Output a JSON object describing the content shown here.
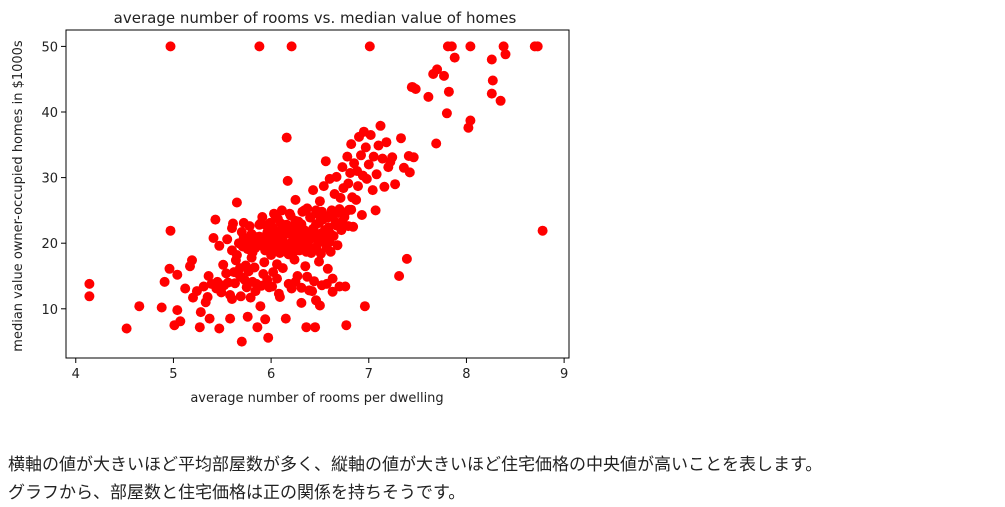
{
  "chart_data": {
    "type": "scatter",
    "title": "average number of rooms vs. median value of homes",
    "xlabel": "average number of rooms per dwelling",
    "ylabel": "median value owner-occupied homes in $1000s",
    "xlim": [
      3.9,
      9.05
    ],
    "ylim": [
      2.5,
      52.5
    ],
    "xticks": [
      4,
      5,
      6,
      7,
      8,
      9
    ],
    "yticks": [
      10,
      20,
      30,
      40,
      50
    ],
    "grid": false,
    "legend": "none",
    "color": "#ff0000",
    "points": [
      [
        4.97,
        50
      ],
      [
        5.88,
        50
      ],
      [
        6.21,
        50
      ],
      [
        7.01,
        50
      ],
      [
        7.81,
        50
      ],
      [
        7.85,
        50
      ],
      [
        8.04,
        50
      ],
      [
        8.38,
        50
      ],
      [
        8.7,
        50
      ],
      [
        8.73,
        50
      ],
      [
        7.77,
        45.5
      ],
      [
        7.88,
        48.3
      ],
      [
        8.26,
        48.0
      ],
      [
        8.27,
        44.8
      ],
      [
        8.4,
        48.8
      ],
      [
        7.7,
        46.5
      ],
      [
        7.66,
        45.8
      ],
      [
        7.45,
        43.8
      ],
      [
        7.48,
        43.5
      ],
      [
        7.82,
        43.1
      ],
      [
        7.61,
        42.3
      ],
      [
        8.26,
        42.8
      ],
      [
        8.35,
        41.7
      ],
      [
        7.8,
        39.8
      ],
      [
        8.04,
        38.7
      ],
      [
        8.02,
        37.6
      ],
      [
        7.69,
        35.2
      ],
      [
        8.78,
        21.9
      ],
      [
        4.14,
        13.8
      ],
      [
        4.14,
        11.9
      ],
      [
        4.52,
        7.0
      ],
      [
        4.65,
        10.4
      ],
      [
        4.88,
        10.2
      ],
      [
        4.97,
        21.9
      ],
      [
        4.91,
        14.1
      ],
      [
        4.96,
        16.1
      ],
      [
        5.04,
        15.2
      ],
      [
        5.04,
        9.8
      ],
      [
        5.01,
        7.5
      ],
      [
        5.07,
        8.1
      ],
      [
        5.17,
        16.5
      ],
      [
        5.19,
        17.4
      ],
      [
        5.27,
        7.2
      ],
      [
        5.31,
        13.4
      ],
      [
        5.35,
        11.8
      ],
      [
        5.37,
        8.5
      ],
      [
        5.41,
        20.8
      ],
      [
        5.43,
        23.6
      ],
      [
        5.45,
        14.1
      ],
      [
        5.47,
        19.6
      ],
      [
        5.47,
        7.0
      ],
      [
        5.52,
        13.6
      ],
      [
        5.58,
        12.1
      ],
      [
        5.58,
        8.5
      ],
      [
        5.6,
        11.5
      ],
      [
        5.6,
        18.9
      ],
      [
        5.61,
        23.0
      ],
      [
        5.62,
        15.6
      ],
      [
        5.64,
        17.4
      ],
      [
        5.65,
        26.2
      ],
      [
        5.67,
        20.0
      ],
      [
        5.69,
        14.9
      ],
      [
        5.7,
        5.0
      ],
      [
        5.71,
        19.5
      ],
      [
        5.72,
        23.1
      ],
      [
        5.74,
        16.6
      ],
      [
        5.75,
        13.3
      ],
      [
        5.76,
        8.8
      ],
      [
        5.78,
        20.2
      ],
      [
        5.8,
        17.8
      ],
      [
        5.82,
        21.1
      ],
      [
        5.84,
        12.7
      ],
      [
        5.86,
        7.2
      ],
      [
        5.87,
        19.8
      ],
      [
        5.88,
        22.8
      ],
      [
        5.89,
        10.4
      ],
      [
        5.91,
        24.0
      ],
      [
        5.92,
        15.3
      ],
      [
        5.93,
        17.1
      ],
      [
        5.94,
        8.4
      ],
      [
        5.95,
        19.9
      ],
      [
        5.96,
        21.6
      ],
      [
        5.97,
        5.6
      ],
      [
        5.98,
        13.3
      ],
      [
        5.99,
        23.1
      ],
      [
        6.0,
        18.2
      ],
      [
        6.01,
        20.6
      ],
      [
        6.02,
        15.6
      ],
      [
        6.03,
        24.5
      ],
      [
        6.04,
        19.3
      ],
      [
        6.05,
        21.8
      ],
      [
        6.06,
        16.8
      ],
      [
        6.07,
        23.7
      ],
      [
        6.08,
        12.3
      ],
      [
        6.09,
        20.4
      ],
      [
        6.1,
        19.1
      ],
      [
        6.11,
        25.0
      ],
      [
        6.12,
        16.2
      ],
      [
        6.13,
        22.2
      ],
      [
        6.14,
        20.0
      ],
      [
        6.15,
        8.5
      ],
      [
        6.16,
        36.1
      ],
      [
        6.17,
        29.5
      ],
      [
        6.18,
        18.3
      ],
      [
        6.19,
        21.4
      ],
      [
        6.2,
        24.2
      ],
      [
        6.21,
        13.1
      ],
      [
        6.22,
        19.6
      ],
      [
        6.23,
        22.6
      ],
      [
        6.24,
        17.5
      ],
      [
        6.25,
        26.6
      ],
      [
        6.26,
        20.9
      ],
      [
        6.27,
        15.0
      ],
      [
        6.28,
        23.3
      ],
      [
        6.29,
        18.9
      ],
      [
        6.3,
        21.7
      ],
      [
        6.31,
        10.9
      ],
      [
        6.32,
        24.8
      ],
      [
        6.33,
        19.4
      ],
      [
        6.34,
        22.0
      ],
      [
        6.35,
        16.5
      ],
      [
        6.36,
        7.2
      ],
      [
        6.37,
        25.3
      ],
      [
        6.38,
        20.3
      ],
      [
        6.39,
        12.8
      ],
      [
        6.4,
        23.9
      ],
      [
        6.41,
        18.5
      ],
      [
        6.42,
        21.2
      ],
      [
        6.43,
        28.1
      ],
      [
        6.44,
        14.2
      ],
      [
        6.45,
        7.2
      ],
      [
        6.46,
        22.9
      ],
      [
        6.47,
        19.0
      ],
      [
        6.48,
        24.4
      ],
      [
        6.49,
        17.2
      ],
      [
        6.5,
        26.4
      ],
      [
        6.51,
        21.5
      ],
      [
        6.52,
        13.6
      ],
      [
        6.53,
        23.6
      ],
      [
        6.54,
        28.7
      ],
      [
        6.55,
        20.1
      ],
      [
        6.56,
        32.5
      ],
      [
        6.57,
        24.1
      ],
      [
        6.58,
        16.1
      ],
      [
        6.59,
        22.4
      ],
      [
        6.6,
        29.8
      ],
      [
        6.61,
        18.7
      ],
      [
        6.62,
        25.0
      ],
      [
        6.63,
        14.6
      ],
      [
        6.64,
        21.1
      ],
      [
        6.65,
        27.5
      ],
      [
        6.66,
        23.2
      ],
      [
        6.67,
        30.1
      ],
      [
        6.68,
        19.7
      ],
      [
        6.69,
        24.6
      ],
      [
        6.7,
        13.4
      ],
      [
        6.71,
        26.9
      ],
      [
        6.72,
        22.0
      ],
      [
        6.73,
        31.6
      ],
      [
        6.74,
        28.4
      ],
      [
        6.75,
        24.0
      ],
      [
        6.76,
        13.4
      ],
      [
        6.77,
        7.5
      ],
      [
        6.78,
        33.2
      ],
      [
        6.79,
        29.1
      ],
      [
        6.8,
        25.1
      ],
      [
        6.81,
        30.7
      ],
      [
        6.82,
        35.1
      ],
      [
        6.83,
        27.0
      ],
      [
        6.84,
        22.5
      ],
      [
        6.85,
        32.2
      ],
      [
        6.87,
        26.6
      ],
      [
        6.88,
        31.0
      ],
      [
        6.89,
        28.7
      ],
      [
        6.9,
        36.2
      ],
      [
        6.92,
        33.4
      ],
      [
        6.93,
        24.3
      ],
      [
        6.94,
        30.3
      ],
      [
        6.95,
        37.0
      ],
      [
        6.96,
        10.4
      ],
      [
        6.97,
        34.6
      ],
      [
        6.98,
        29.8
      ],
      [
        7.0,
        32.0
      ],
      [
        7.02,
        36.5
      ],
      [
        7.04,
        28.1
      ],
      [
        7.05,
        33.2
      ],
      [
        7.07,
        25.0
      ],
      [
        7.08,
        30.5
      ],
      [
        7.1,
        34.9
      ],
      [
        7.12,
        37.9
      ],
      [
        7.14,
        32.9
      ],
      [
        7.16,
        28.6
      ],
      [
        7.18,
        35.4
      ],
      [
        7.2,
        31.6
      ],
      [
        7.22,
        32.4
      ],
      [
        7.24,
        33.1
      ],
      [
        7.27,
        29.0
      ],
      [
        7.31,
        15.0
      ],
      [
        7.33,
        36.0
      ],
      [
        7.36,
        31.5
      ],
      [
        7.39,
        17.6
      ],
      [
        7.41,
        33.3
      ],
      [
        7.42,
        30.8
      ],
      [
        7.44,
        43.8
      ],
      [
        7.46,
        33.1
      ],
      [
        5.12,
        13.1
      ],
      [
        5.2,
        11.7
      ],
      [
        5.24,
        12.7
      ],
      [
        5.28,
        9.5
      ],
      [
        5.33,
        11.0
      ],
      [
        5.36,
        15.0
      ],
      [
        5.39,
        13.8
      ],
      [
        5.44,
        13.1
      ],
      [
        5.49,
        12.5
      ],
      [
        5.51,
        16.7
      ],
      [
        5.54,
        15.4
      ],
      [
        5.56,
        14.0
      ],
      [
        5.63,
        13.9
      ],
      [
        5.66,
        15.4
      ],
      [
        5.68,
        16.2
      ],
      [
        5.69,
        11.9
      ],
      [
        5.73,
        14.4
      ],
      [
        5.77,
        15.7
      ],
      [
        5.79,
        11.7
      ],
      [
        5.81,
        14.1
      ],
      [
        5.83,
        16.3
      ],
      [
        5.85,
        13.8
      ],
      [
        5.9,
        13.5
      ],
      [
        5.96,
        14.4
      ],
      [
        6.01,
        13.4
      ],
      [
        6.06,
        14.6
      ],
      [
        6.09,
        11.8
      ],
      [
        6.18,
        13.8
      ],
      [
        6.25,
        14.1
      ],
      [
        6.31,
        13.2
      ],
      [
        6.37,
        14.9
      ],
      [
        6.42,
        12.7
      ],
      [
        6.46,
        11.3
      ],
      [
        6.5,
        10.5
      ],
      [
        6.57,
        13.8
      ],
      [
        6.63,
        12.6
      ],
      [
        5.55,
        20.6
      ],
      [
        5.6,
        22.3
      ],
      [
        5.65,
        18.2
      ],
      [
        5.7,
        21.7
      ],
      [
        5.74,
        19.4
      ],
      [
        5.78,
        22.6
      ],
      [
        5.81,
        18.6
      ],
      [
        5.85,
        20.8
      ],
      [
        5.89,
        23.0
      ],
      [
        5.92,
        19.5
      ],
      [
        5.95,
        22.7
      ],
      [
        5.98,
        20.1
      ],
      [
        6.01,
        22.5
      ],
      [
        6.04,
        24.3
      ],
      [
        6.07,
        21.0
      ],
      [
        6.1,
        23.0
      ],
      [
        6.13,
        19.9
      ],
      [
        6.16,
        22.8
      ],
      [
        6.19,
        24.5
      ],
      [
        6.22,
        21.2
      ],
      [
        6.25,
        23.4
      ],
      [
        6.28,
        20.7
      ],
      [
        6.31,
        22.9
      ],
      [
        6.34,
        25.0
      ],
      [
        6.37,
        21.6
      ],
      [
        6.4,
        24.0
      ],
      [
        6.43,
        22.2
      ],
      [
        6.46,
        25.0
      ],
      [
        6.49,
        23.1
      ],
      [
        6.52,
        24.8
      ],
      [
        6.55,
        22.0
      ],
      [
        6.58,
        23.9
      ],
      [
        6.61,
        21.4
      ],
      [
        6.64,
        24.4
      ],
      [
        6.67,
        22.7
      ],
      [
        6.7,
        25.2
      ],
      [
        6.73,
        23.3
      ],
      [
        6.76,
        24.7
      ],
      [
        6.79,
        22.6
      ],
      [
        6.82,
        25.1
      ],
      [
        5.72,
        20.9
      ],
      [
        5.76,
        19.1
      ],
      [
        5.8,
        21.4
      ],
      [
        5.84,
        19.3
      ],
      [
        5.88,
        21.0
      ],
      [
        5.91,
        20.3
      ],
      [
        5.94,
        18.9
      ],
      [
        5.97,
        21.2
      ],
      [
        6.0,
        19.6
      ],
      [
        6.03,
        21.9
      ],
      [
        6.06,
        20.2
      ],
      [
        6.09,
        18.5
      ],
      [
        6.12,
        21.0
      ],
      [
        6.15,
        19.4
      ],
      [
        6.18,
        21.6
      ],
      [
        6.21,
        20.1
      ],
      [
        6.24,
        18.8
      ],
      [
        6.27,
        21.5
      ],
      [
        6.3,
        19.9
      ],
      [
        6.33,
        20.8
      ],
      [
        6.36,
        18.7
      ],
      [
        6.39,
        20.5
      ],
      [
        6.42,
        19.2
      ],
      [
        6.45,
        21.1
      ],
      [
        6.48,
        20.0
      ],
      [
        6.51,
        18.4
      ],
      [
        6.54,
        20.7
      ],
      [
        6.57,
        19.3
      ],
      [
        6.6,
        20.2
      ]
    ]
  },
  "caption": {
    "line1": "横軸の値が大きいほど平均部屋数が多く、縦軸の値が大きいほど住宅価格の中央値が高いことを表します。",
    "line2": "グラフから、部屋数と住宅価格は正の関係を持ちそうです。"
  }
}
